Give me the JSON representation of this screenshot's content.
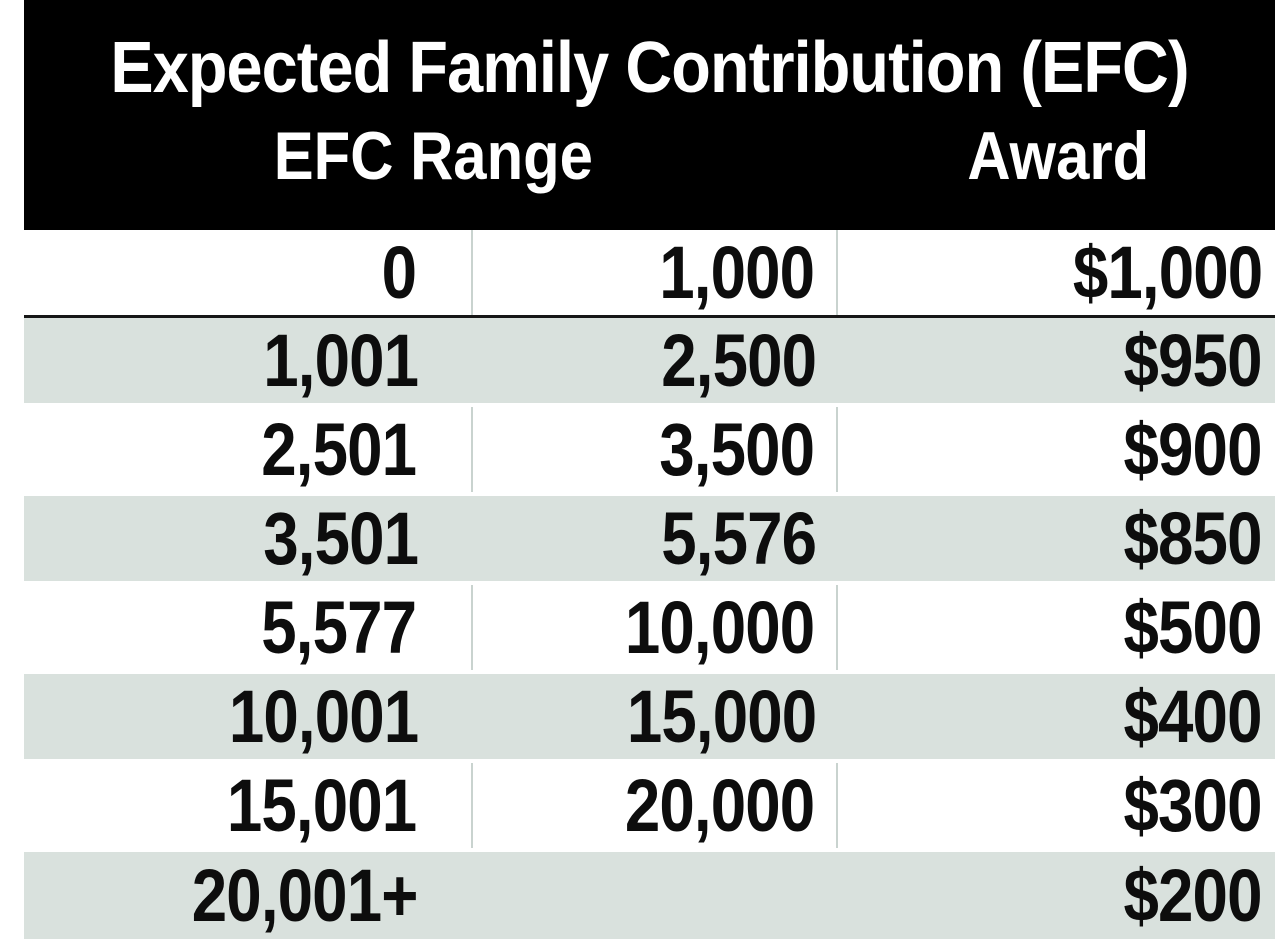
{
  "header": {
    "title": "Expected Family Contribution (EFC)",
    "col_efc_range": "EFC Range",
    "col_award": "Award"
  },
  "chart_data": {
    "type": "table",
    "title": "Expected Family Contribution (EFC)",
    "column_headers": [
      "EFC Range",
      "Award"
    ],
    "rows": [
      [
        "0",
        "1,000",
        "$1,000"
      ],
      [
        "1,001",
        "2,500",
        "$950"
      ],
      [
        "2,501",
        "3,500",
        "$900"
      ],
      [
        "3,501",
        "5,576",
        "$850"
      ],
      [
        "5,577",
        "10,000",
        "$500"
      ],
      [
        "10,001",
        "15,000",
        "$400"
      ],
      [
        "15,001",
        "20,000",
        "$300"
      ],
      [
        "20,001+",
        "",
        "$200"
      ]
    ],
    "shaded_row_indices": [
      1,
      3,
      5,
      7
    ],
    "layout": "EFC Range header spans the first two numeric columns (range min / range max); Award is the third column; rows right-aligned"
  },
  "colors": {
    "header_bg": "#000000",
    "header_text": "#ffffff",
    "row_shaded_bg": "#d9e1dd",
    "row_white_bg": "#ffffff",
    "column_divider": "#c9d3cf",
    "first_row_separator": "#161616",
    "row_text": "#0d0d0d"
  }
}
